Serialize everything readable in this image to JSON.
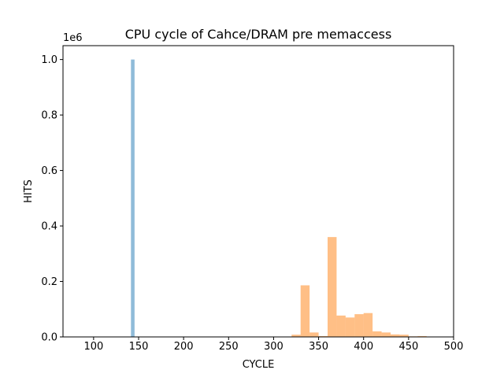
{
  "chart_data": {
    "type": "bar",
    "title": "CPU cycle of Cahce/DRAM pre memaccess",
    "xlabel": "CYCLE",
    "ylabel": "HITS",
    "y_scale_label": "1e6",
    "xlim": [
      66,
      500
    ],
    "ylim": [
      0,
      1.05
    ],
    "x_ticks": [
      {
        "value": 100,
        "label": "100"
      },
      {
        "value": 150,
        "label": "150"
      },
      {
        "value": 200,
        "label": "200"
      },
      {
        "value": 250,
        "label": "250"
      },
      {
        "value": 300,
        "label": "300"
      },
      {
        "value": 350,
        "label": "350"
      },
      {
        "value": 400,
        "label": "400"
      },
      {
        "value": 450,
        "label": "450"
      },
      {
        "value": 500,
        "label": "500"
      }
    ],
    "y_ticks": [
      {
        "value": 0,
        "label": "0.0"
      },
      {
        "value": 0.2,
        "label": "0.2"
      },
      {
        "value": 0.4,
        "label": "0.4"
      },
      {
        "value": 0.6,
        "label": "0.6"
      },
      {
        "value": 0.8,
        "label": "0.8"
      },
      {
        "value": 1.0,
        "label": "1.0"
      }
    ],
    "grid": false,
    "series": [
      {
        "color": "#1f77b4",
        "alpha": 0.5,
        "bins": [
          {
            "x0": 141.5,
            "x1": 145.5,
            "value": 1.0
          }
        ]
      },
      {
        "color": "#ff7f0e",
        "alpha": 0.5,
        "bins": [
          {
            "x0": 320,
            "x1": 330,
            "value": 0.008
          },
          {
            "x0": 330,
            "x1": 340,
            "value": 0.186
          },
          {
            "x0": 340,
            "x1": 350,
            "value": 0.016
          },
          {
            "x0": 350,
            "x1": 360,
            "value": 0.003
          },
          {
            "x0": 360,
            "x1": 370,
            "value": 0.36
          },
          {
            "x0": 370,
            "x1": 380,
            "value": 0.077
          },
          {
            "x0": 380,
            "x1": 390,
            "value": 0.07
          },
          {
            "x0": 390,
            "x1": 400,
            "value": 0.082
          },
          {
            "x0": 400,
            "x1": 410,
            "value": 0.086
          },
          {
            "x0": 410,
            "x1": 420,
            "value": 0.02
          },
          {
            "x0": 420,
            "x1": 430,
            "value": 0.016
          },
          {
            "x0": 430,
            "x1": 440,
            "value": 0.009
          },
          {
            "x0": 440,
            "x1": 450,
            "value": 0.008
          },
          {
            "x0": 450,
            "x1": 460,
            "value": 0.002
          },
          {
            "x0": 460,
            "x1": 470,
            "value": 0.003
          },
          {
            "x0": 470,
            "x1": 480,
            "value": 0.001
          }
        ]
      }
    ]
  }
}
